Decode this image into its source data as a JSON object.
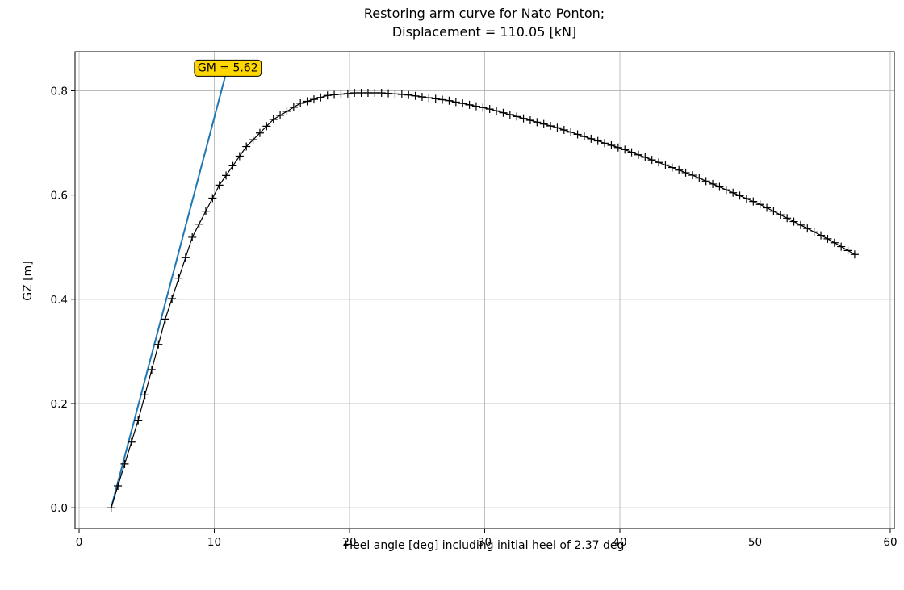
{
  "chart_data": {
    "type": "line",
    "title": "Restoring arm curve for Nato Ponton;",
    "subtitle": "Displacement = 110.05 [kN]",
    "xlabel": "Heel angle [deg] including initial heel of 2.37 deg",
    "ylabel": "GZ [m]",
    "xlim": [
      -0.3,
      60.3
    ],
    "ylim": [
      -0.04,
      0.875
    ],
    "xticks": [
      0,
      10,
      20,
      30,
      40,
      50,
      60
    ],
    "yticks": [
      0.0,
      0.2,
      0.4,
      0.6,
      0.8
    ],
    "xtick_labels": [
      "0",
      "10",
      "20",
      "30",
      "40",
      "50",
      "60"
    ],
    "ytick_labels": [
      "0.0",
      "0.2",
      "0.4",
      "0.6",
      "0.8"
    ],
    "grid": true,
    "series": [
      {
        "marker": "+",
        "color": "#000000",
        "x_start": 2.37,
        "x_end": 57.37,
        "x_step": 0.5,
        "x": [
          2.37,
          4.37,
          6.37,
          8.37,
          10.37,
          12.37,
          14.37,
          16.37,
          18.37,
          20.37,
          22.37,
          24.37,
          27.37,
          30.37,
          35.37,
          40.37,
          45.37,
          50.37,
          55.37,
          57.37
        ],
        "y": [
          0.0,
          0.168,
          0.362,
          0.519,
          0.619,
          0.693,
          0.745,
          0.776,
          0.791,
          0.796,
          0.796,
          0.792,
          0.781,
          0.765,
          0.729,
          0.687,
          0.638,
          0.582,
          0.516,
          0.486
        ]
      },
      {
        "color": "#1f77b4",
        "x": [
          2.37,
          10.88
        ],
        "y": [
          0.0,
          0.835
        ]
      }
    ],
    "annotations": [
      {
        "text": "GM = 5.62",
        "x": 11.0,
        "y": 0.845,
        "facecolor": "#ffd700"
      }
    ]
  }
}
